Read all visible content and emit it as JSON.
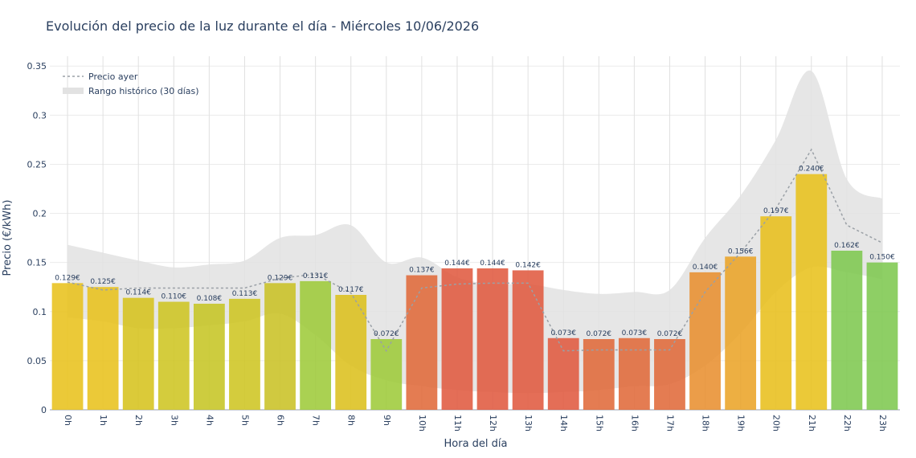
{
  "chart_data": {
    "type": "bar",
    "title": "Evolución del precio de la luz durante el día - Miércoles 10/06/2026",
    "xlabel": "Hora del día",
    "ylabel": "Precio (€/kWh)",
    "ylim": [
      0,
      0.36
    ],
    "yticks": [
      "0",
      "0.05",
      "0.1",
      "0.15",
      "0.2",
      "0.25",
      "0.3",
      "0.35"
    ],
    "grid": true,
    "legend_position": "top-left",
    "categories": [
      "0h",
      "1h",
      "2h",
      "3h",
      "4h",
      "5h",
      "6h",
      "7h",
      "8h",
      "9h",
      "10h",
      "11h",
      "12h",
      "13h",
      "14h",
      "15h",
      "16h",
      "17h",
      "18h",
      "19h",
      "20h",
      "21h",
      "22h",
      "23h"
    ],
    "series": [
      {
        "name": "",
        "values": [
          0.129,
          0.125,
          0.114,
          0.11,
          0.108,
          0.113,
          0.129,
          0.131,
          0.117,
          0.072,
          0.137,
          0.144,
          0.144,
          0.142,
          0.073,
          0.072,
          0.073,
          0.072,
          0.14,
          0.156,
          0.197,
          0.24,
          0.162,
          0.15
        ],
        "labels": [
          "0.129€",
          "0.125€",
          "0.114€",
          "0.110€",
          "0.108€",
          "0.113€",
          "0.129€",
          "0.131€",
          "0.117€",
          "0.072€",
          "0.137€",
          "0.144€",
          "0.144€",
          "0.142€",
          "0.073€",
          "0.072€",
          "0.073€",
          "0.072€",
          "0.140€",
          "0.156€",
          "0.197€",
          "0.240€",
          "0.162€",
          "0.150€"
        ],
        "colors": [
          "#e8c21c",
          "#e8c21c",
          "#d6c31e",
          "#cec522",
          "#c6c524",
          "#cec522",
          "#c9c226",
          "#9ecb3a",
          "#dcc01e",
          "#9ecb3a",
          "#e06a3a",
          "#e05a40",
          "#e05a40",
          "#e05a40",
          "#e05a40",
          "#e06a3a",
          "#e06a3a",
          "#e06a3a",
          "#e89030",
          "#eaa428",
          "#e8bf1c",
          "#e8c21c",
          "#7ec850",
          "#7ec850"
        ]
      },
      {
        "name": "Precio ayer",
        "values": [
          0.13,
          0.122,
          0.124,
          0.124,
          0.124,
          0.124,
          0.134,
          0.138,
          0.119,
          0.06,
          0.124,
          0.128,
          0.129,
          0.129,
          0.06,
          0.061,
          0.061,
          0.061,
          0.12,
          0.16,
          0.205,
          0.265,
          0.188,
          0.17
        ],
        "color": "#9aa0a6"
      },
      {
        "name": "Rango histórico (30 días)",
        "upper": [
          0.168,
          0.16,
          0.152,
          0.145,
          0.148,
          0.152,
          0.175,
          0.178,
          0.188,
          0.15,
          0.155,
          0.135,
          0.128,
          0.128,
          0.122,
          0.118,
          0.12,
          0.122,
          0.175,
          0.218,
          0.275,
          0.345,
          0.235,
          0.215
        ],
        "lower": [
          0.094,
          0.09,
          0.083,
          0.083,
          0.086,
          0.09,
          0.098,
          0.076,
          0.045,
          0.03,
          0.024,
          0.02,
          0.018,
          0.017,
          0.018,
          0.02,
          0.024,
          0.026,
          0.045,
          0.078,
          0.12,
          0.145,
          0.14,
          0.133
        ],
        "color": "#e2e2e2"
      }
    ]
  }
}
